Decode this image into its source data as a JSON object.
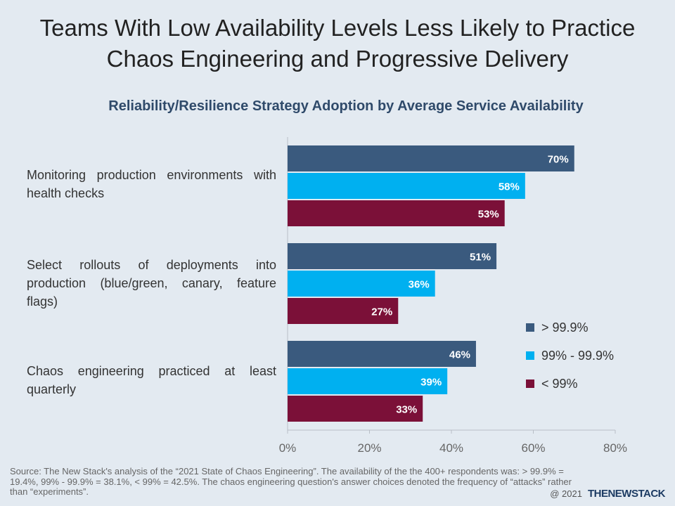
{
  "title_line1": "Teams With Low Availability Levels Less Likely to Practice",
  "title_line2": "Chaos Engineering and Progressive Delivery",
  "chart_data": {
    "type": "bar",
    "orientation": "horizontal",
    "title": "Reliability/Resilience Strategy Adoption by Average Service Availability",
    "categories": [
      "Monitoring production environments with health checks",
      "Select rollouts of deployments into production (blue/green, canary, feature flags)",
      "Chaos engineering practiced at least quarterly"
    ],
    "series": [
      {
        "name": "> 99.9%",
        "color": "#3a5a7e",
        "values": [
          70,
          51,
          46
        ]
      },
      {
        "name": "99% - 99.9%",
        "color": "#00b0f0",
        "values": [
          58,
          36,
          39
        ]
      },
      {
        "name": "< 99%",
        "color": "#7b1038",
        "values": [
          53,
          27,
          33
        ]
      }
    ],
    "xlim": [
      0,
      80
    ],
    "xticks": [
      "0%",
      "20%",
      "40%",
      "60%",
      "80%"
    ],
    "data_labels": true,
    "legend_position": "right"
  },
  "source_text": "Source: The New Stack's analysis of the “2021 State of Chaos Engineering”. The availability of the the 400+ respondents was: > 99.9% = 19.4%, 99% - 99.9% = 38.1%, < 99% = 42.5%. The chaos engineering question's answer choices denoted the frequency of “attacks” rather than “experiments”.",
  "footer": {
    "copyright": "@ 2021",
    "brand": "THENEWSTACK"
  }
}
